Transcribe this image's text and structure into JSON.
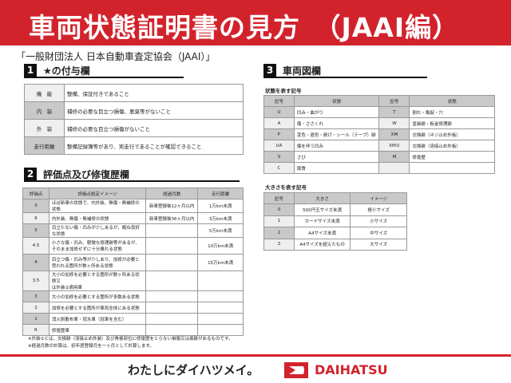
{
  "header": {
    "title": "車両状態証明書の見方　（JAAI編）",
    "subtitle": "「一般財団法人 日本自動車査定協会（JAAI）」"
  },
  "section1": {
    "num": "1",
    "title": "★の付与欄",
    "rows": [
      [
        "機　能",
        "整備、保証付きであること"
      ],
      [
        "内　装",
        "補修の必要な目立つ損傷、悪臭等がないこと"
      ],
      [
        "外　装",
        "補修の必要な目立つ損傷がないこと"
      ],
      [
        "走行距離",
        "整備記録簿等があり、実走行であることが確認できること"
      ]
    ]
  },
  "section2": {
    "num": "2",
    "title": "評価点及び修復歴欄",
    "headers": [
      "評価点",
      "評価点設定イメージ",
      "経過月数",
      "走行距離"
    ],
    "rows": [
      [
        "S",
        "ほぼ新車の状態で、内外装、無傷・無補修の状態",
        "新車登録後12ヶ月以内",
        "1万km未満"
      ],
      [
        "6",
        "内外装、無傷・無補修の状態",
        "新車登録後36ヶ月以内",
        "3万km未満"
      ],
      [
        "5",
        "目立たない傷・凹みが少しあるが、概ね良好な状態",
        "",
        "5万km未満"
      ],
      [
        "4.5",
        "小さな傷・凹み、軽微な修理跡等があるが、\nそのまま加修せずに十分乗れる状態",
        "",
        "10万km未満"
      ],
      [
        "4",
        "目立つ傷・凹み等が少しあり、加修が必要と\n思われる箇所が数ヶ所ある状態",
        "",
        "15万km未満"
      ],
      [
        "3.5",
        "大小の加修を必要とする箇所が数ヶ所ある状態又\nは外装②適用車",
        "",
        ""
      ],
      [
        "3",
        "大小の加修を必要とする箇所が多数ある状態",
        "",
        ""
      ],
      [
        "2",
        "加修を必要とする箇所が車両全体にある状態",
        "",
        ""
      ],
      [
        "1",
        "消火剤散布車・冠水車（冠車を含む）",
        "",
        ""
      ],
      [
        "R",
        "修復歴車",
        "",
        ""
      ]
    ]
  },
  "section3": {
    "num": "3",
    "title": "車両図欄",
    "condition_label": "状態を表す記号",
    "condition_headers": [
      "記号",
      "状態",
      "記号",
      "状態"
    ],
    "condition_rows": [
      [
        "U",
        "凹み・曲がり",
        "T",
        "割れ・亀裂・穴"
      ],
      [
        "A",
        "傷・ささくれ",
        "W",
        "塗装跡・板金修理跡"
      ],
      [
        "P",
        "変色・退色・剥げ・シール（テープ）跡",
        "XM",
        "交換跡（ネジ止め外板）"
      ],
      [
        "UA",
        "傷を伴う凹み",
        "XM②",
        "交換跡（溶接止め外板）"
      ],
      [
        "S",
        "さび",
        "M",
        "修復歴"
      ],
      [
        "C",
        "腐食",
        "",
        ""
      ]
    ],
    "size_label": "大きさを表す記号",
    "size_headers": [
      "記号",
      "大きさ",
      "イメージ"
    ],
    "size_rows": [
      [
        "0",
        "500円玉サイズ未満",
        "極小サイズ"
      ],
      [
        "1",
        "カードサイズ未満",
        "小サイズ"
      ],
      [
        "2",
        "A4サイズ未満",
        "中サイズ"
      ],
      [
        "3",
        "A4サイズを超えたもの",
        "大サイズ"
      ]
    ]
  },
  "notes": [
    "※外装②とは、交換跡（溶接止め外装）及び骨格部位に修復歴をとらない損傷又は痕跡があるものです。",
    "※経過月数の計算は、初年度登録月を一ヶ月として計算します。"
  ],
  "footer": {
    "slogan": "わたしにダイハツメイ。",
    "brand": "DAIHATSU"
  },
  "colors": {
    "brand_red": "#d2232c"
  }
}
